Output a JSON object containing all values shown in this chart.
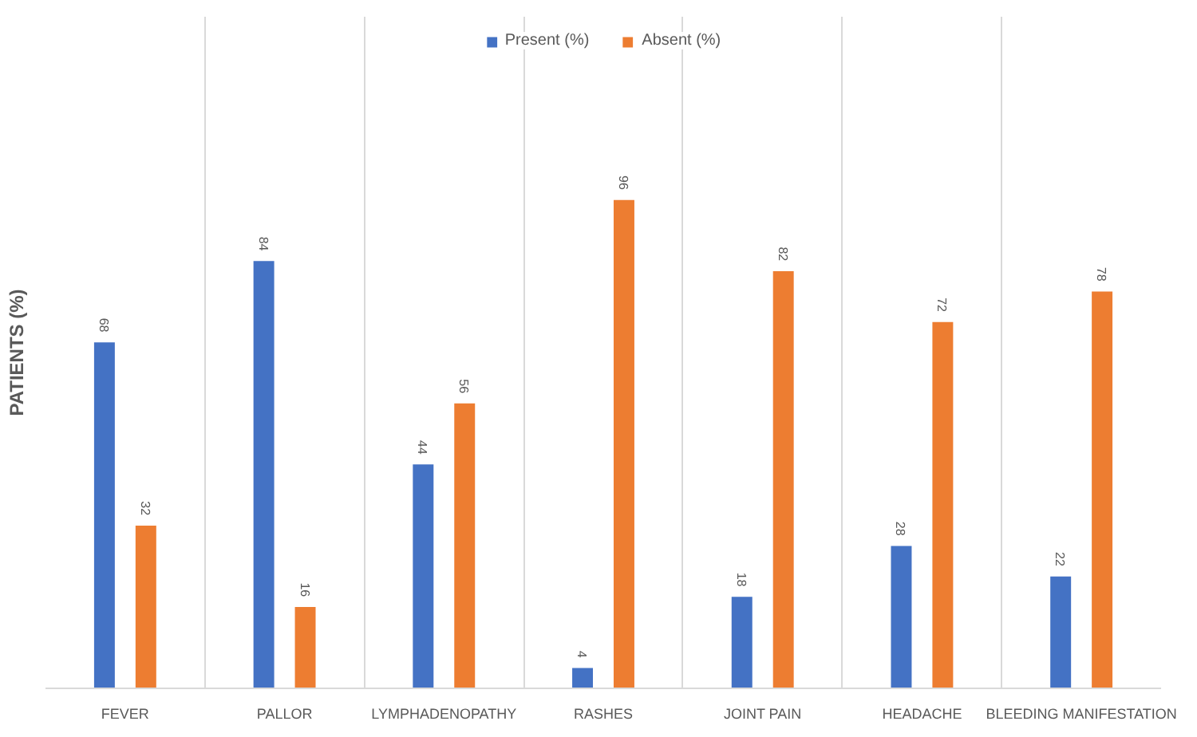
{
  "chart_data": {
    "type": "bar",
    "ylabel": "PATIENTS (%)",
    "categories": [
      "FEVER",
      "PALLOR",
      "LYMPHADENOPATHY",
      "RASHES",
      "JOINT PAIN",
      "HEADACHE",
      "BLEEDING MANIFESTATION"
    ],
    "series": [
      {
        "name": "Present (%)",
        "color": "#4472c4",
        "values": [
          68,
          84,
          44,
          4,
          18,
          28,
          22
        ]
      },
      {
        "name": "Absent (%)",
        "color": "#ed7d31",
        "values": [
          32,
          16,
          56,
          96,
          82,
          72,
          78
        ]
      }
    ],
    "ylim": [
      0,
      132
    ],
    "data_labels": true,
    "grid": "x",
    "legend": "top",
    "tick_labels": "x"
  }
}
